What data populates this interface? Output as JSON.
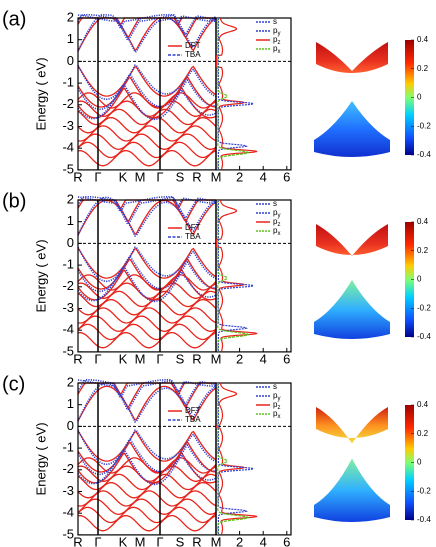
{
  "figure": {
    "y_label": "Energy ( eV)",
    "y_ticks": [
      2,
      1,
      0,
      -1,
      -2,
      -3,
      -4,
      -5
    ],
    "k_labels": [
      "R",
      "Γ",
      "K",
      "M",
      "Γ",
      "S",
      "R",
      "M"
    ],
    "dos_ticks": [
      2,
      4,
      6
    ],
    "colorbar_ticks": [
      0.4,
      0.2,
      0,
      -0.2,
      -0.4
    ],
    "panels": [
      {
        "label": "(a)",
        "band_legend": [
          "DFT",
          "TBA"
        ],
        "dos_legend": [
          {
            "text": "s"
          },
          {
            "text": "p",
            "sub": "y"
          },
          {
            "text": "p",
            "sub": "z"
          },
          {
            "text": "p",
            "sub": "x"
          }
        ]
      },
      {
        "label": "(b)",
        "band_legend": [
          "DFT",
          "TBA"
        ],
        "dos_legend": [
          {
            "text": "s"
          },
          {
            "text": "p",
            "sub": "y"
          },
          {
            "text": "p",
            "sub": "z"
          },
          {
            "text": "p",
            "sub": "x"
          }
        ]
      },
      {
        "label": "(c)",
        "band_legend": [
          "DFT",
          "TBA"
        ],
        "dos_legend": [
          {
            "text": "s"
          },
          {
            "text": "p",
            "sub": "y"
          },
          {
            "text": "p",
            "sub": "z"
          },
          {
            "text": "p",
            "sub": "x"
          }
        ]
      }
    ]
  }
}
